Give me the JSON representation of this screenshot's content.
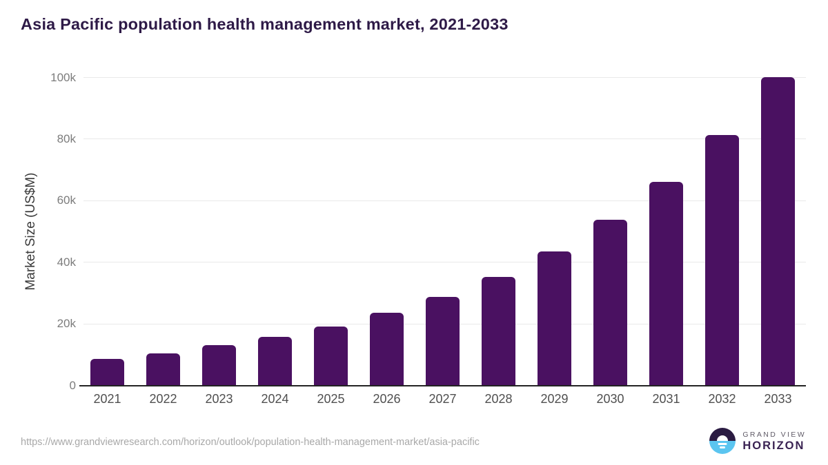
{
  "title": "Asia Pacific population health management market, 2021-2033",
  "source_url": "https://www.grandviewresearch.com/horizon/outlook/population-health-management-market/asia-pacific",
  "logo": {
    "line1": "GRAND VIEW",
    "line2": "HORIZON"
  },
  "colors": {
    "bar": "#4a1161",
    "title": "#2e1a47",
    "gridline": "#e9e9e9",
    "axis_line": "#222222",
    "ytick_text": "#7c7c7c",
    "xtick_text": "#4f4f4f",
    "url_text": "#a8a8a8",
    "logo_dark": "#2b1b42",
    "logo_blue": "#5bc5f0",
    "logo_purple": "#3a2353",
    "logo_gray": "#5f5a66"
  },
  "chart_data": {
    "type": "bar",
    "title": "Asia Pacific population health management market, 2021-2033",
    "categories": [
      "2021",
      "2022",
      "2023",
      "2024",
      "2025",
      "2026",
      "2027",
      "2028",
      "2029",
      "2030",
      "2031",
      "2032",
      "2033"
    ],
    "values": [
      8600,
      10400,
      12900,
      15600,
      19100,
      23500,
      28700,
      35100,
      43500,
      53600,
      66000,
      81100,
      100100
    ],
    "xlabel": "",
    "ylabel": "Market Size (US$M)",
    "ylim": [
      0,
      100000
    ],
    "yticks": [
      {
        "label": "0",
        "value": 0
      },
      {
        "label": "20k",
        "value": 20000
      },
      {
        "label": "40k",
        "value": 40000
      },
      {
        "label": "60k",
        "value": 60000
      },
      {
        "label": "80k",
        "value": 80000
      },
      {
        "label": "100k",
        "value": 100000
      }
    ],
    "grid": "horizontal",
    "legend": false
  }
}
